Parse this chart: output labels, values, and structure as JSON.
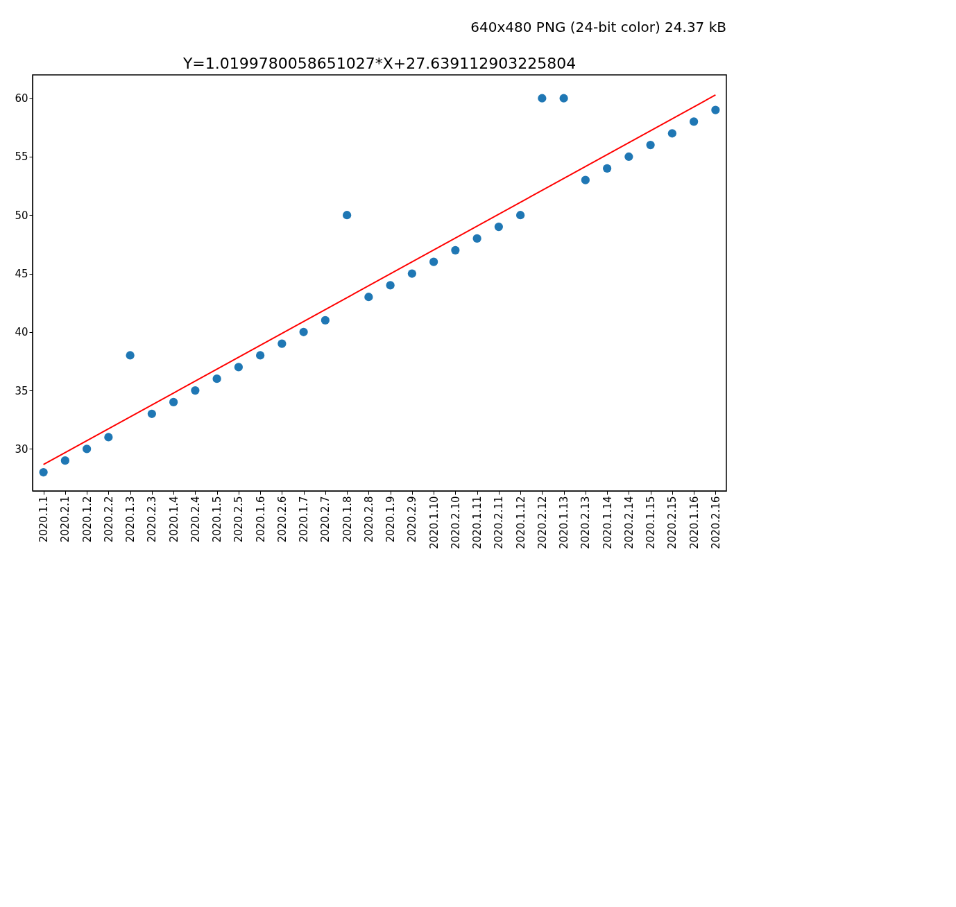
{
  "chart_data": {
    "type": "scatter",
    "title": "Y=1.0199780058651027*X+27.639112903225804",
    "annotations": [
      "640x480 PNG (24-bit color) 24.37 kB"
    ],
    "categories": [
      "2020.1.1",
      "2020.2.1",
      "2020.1.2",
      "2020.2.2",
      "2020.1.3",
      "2020.2.3",
      "2020.1.4",
      "2020.2.4",
      "2020.1.5",
      "2020.2.5",
      "2020.1.6",
      "2020.2.6",
      "2020.1.7",
      "2020.2.7",
      "2020.1.8",
      "2020.2.8",
      "2020.1.9",
      "2020.2.9",
      "2020.1.10",
      "2020.2.10",
      "2020.1.11",
      "2020.2.11",
      "2020.1.12",
      "2020.2.12",
      "2020.1.13",
      "2020.2.13",
      "2020.1.14",
      "2020.2.14",
      "2020.1.15",
      "2020.2.15",
      "2020.1.16",
      "2020.2.16"
    ],
    "series": [
      {
        "type": "scatter",
        "marker": "circle",
        "color": "#1f77b4",
        "values": [
          28,
          29,
          30,
          31,
          38,
          33,
          34,
          35,
          36,
          37,
          38,
          39,
          40,
          41,
          50,
          43,
          44,
          45,
          46,
          47,
          48,
          49,
          50,
          60,
          60,
          53,
          54,
          55,
          56,
          57,
          58,
          59
        ]
      },
      {
        "type": "line",
        "marker": "none",
        "color": "#ff0000",
        "x": [
          "2020.1.1",
          "2020.2.16"
        ],
        "values": [
          28.66,
          60.28
        ]
      }
    ],
    "ylim": [
      26.4,
      62.0
    ],
    "yticks": [
      30,
      35,
      40,
      45,
      50,
      55,
      60
    ],
    "grid": false
  }
}
